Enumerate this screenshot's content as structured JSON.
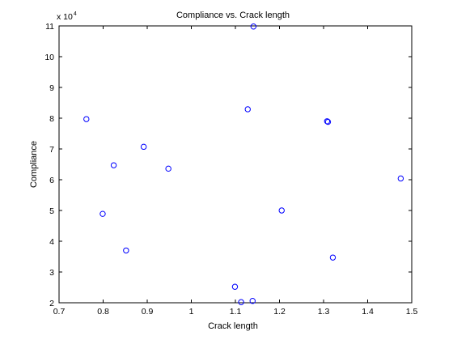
{
  "chart_data": {
    "type": "scatter",
    "title": "Compliance vs. Crack length",
    "xlabel": "Crack length",
    "ylabel": "Compliance",
    "xlim": [
      0.7,
      1.5
    ],
    "ylim": [
      2,
      11
    ],
    "x_ticks": [
      0.7,
      0.8,
      0.9,
      1,
      1.1,
      1.2,
      1.3,
      1.4,
      1.5
    ],
    "x_tick_labels": [
      "0.7",
      "0.8",
      "0.9",
      "1",
      "1.1",
      "1.2",
      "1.3",
      "1.4",
      "1.5"
    ],
    "y_ticks": [
      2,
      3,
      4,
      5,
      6,
      7,
      8,
      9,
      10,
      11
    ],
    "y_tick_labels": [
      "2",
      "3",
      "4",
      "5",
      "6",
      "7",
      "8",
      "9",
      "10",
      "11"
    ],
    "y_multiplier_base": "x 10",
    "y_multiplier_exponent": "4",
    "grid": false,
    "marker": "circle-open",
    "marker_color": "#0000ff",
    "series": [
      {
        "points": [
          {
            "x": 0.762,
            "y": 7.97
          },
          {
            "x": 0.799,
            "y": 4.89
          },
          {
            "x": 0.824,
            "y": 6.47
          },
          {
            "x": 0.852,
            "y": 3.7
          },
          {
            "x": 0.892,
            "y": 7.07
          },
          {
            "x": 0.948,
            "y": 6.36
          },
          {
            "x": 1.099,
            "y": 2.52
          },
          {
            "x": 1.113,
            "y": 2.02
          },
          {
            "x": 1.128,
            "y": 8.29
          },
          {
            "x": 1.139,
            "y": 2.06
          },
          {
            "x": 1.141,
            "y": 10.98
          },
          {
            "x": 1.205,
            "y": 5.0
          },
          {
            "x": 1.308,
            "y": 7.9
          },
          {
            "x": 1.31,
            "y": 7.88
          },
          {
            "x": 1.321,
            "y": 3.47
          },
          {
            "x": 1.475,
            "y": 6.04
          }
        ]
      }
    ]
  }
}
